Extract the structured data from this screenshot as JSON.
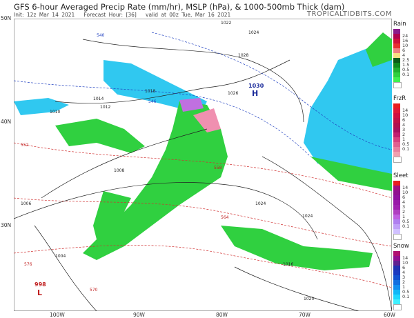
{
  "header": {
    "title": "GFS 6-hour Averaged Precip Rate (mm/hr), MSLP (hPa), & 1000-500mb Thick (dam)",
    "init": "Init: 12z Mar 14 2021",
    "forecast_hour": "Forecast Hour: [36]",
    "valid": "valid at 00z Tue, Mar 16 2021",
    "brand": "TROPICALTIDBITS.COM"
  },
  "axes": {
    "lat": [
      "50N",
      "40N",
      "30N"
    ],
    "lon": [
      "100W",
      "90W",
      "80W",
      "70W",
      "60W"
    ]
  },
  "isobars": {
    "labels": [
      "1022",
      "1024",
      "1028",
      "1026",
      "1018",
      "1014",
      "1012",
      "1010",
      "1008",
      "1006",
      "1004",
      "1024",
      "1024",
      "1020",
      "1016"
    ],
    "high": {
      "value": "1030",
      "symbol": "H"
    },
    "low": {
      "value": "998",
      "symbol": "L"
    }
  },
  "thickness": {
    "labels": [
      "540",
      "546",
      "552",
      "558",
      "564",
      "570",
      "576"
    ]
  },
  "legends": [
    {
      "title": "Rain",
      "labels": [
        "24",
        "16",
        "10",
        "6",
        "4",
        "2.5",
        "1.5",
        "0.5",
        "0.1"
      ],
      "colors": [
        "#8b1a8b",
        "#b00050",
        "#d0103a",
        "#e83030",
        "#f08080",
        "#f8e080",
        "#0a5a1a",
        "#108a20",
        "#20b030",
        "#30d040",
        "#40f050",
        "#ffffff"
      ]
    },
    {
      "title": "FrzR",
      "labels": [
        "14",
        "10",
        "6",
        "4",
        "3",
        "2",
        "1",
        "0.5",
        "0.1"
      ],
      "colors": [
        "#e82020",
        "#e01838",
        "#d01040",
        "#c01048",
        "#b01050",
        "#a81060",
        "#c02070",
        "#d84080",
        "#e06090",
        "#e880a0",
        "#f0a0b0",
        "#ffffff"
      ]
    },
    {
      "title": "Sleet",
      "labels": [
        "14",
        "10",
        "6",
        "4",
        "3",
        "2",
        "1",
        "0.5",
        "0.1"
      ],
      "colors": [
        "#e82020",
        "#a01080",
        "#901090",
        "#9010a0",
        "#9818a8",
        "#a020b0",
        "#b040c0",
        "#c060e0",
        "#b080f0",
        "#c0a0f8",
        "#d0c0ff",
        "#ffffff"
      ]
    },
    {
      "title": "Snow",
      "labels": [
        "14",
        "10",
        "6",
        "4",
        "3",
        "2",
        "1",
        "0.5",
        "0.1"
      ],
      "colors": [
        "#b01070",
        "#901090",
        "#602090",
        "#2030b0",
        "#1838c0",
        "#1050d0",
        "#1070e0",
        "#1090f0",
        "#10b8f8",
        "#20d8ff",
        "#40f0ff",
        "#ffffff"
      ]
    }
  ]
}
